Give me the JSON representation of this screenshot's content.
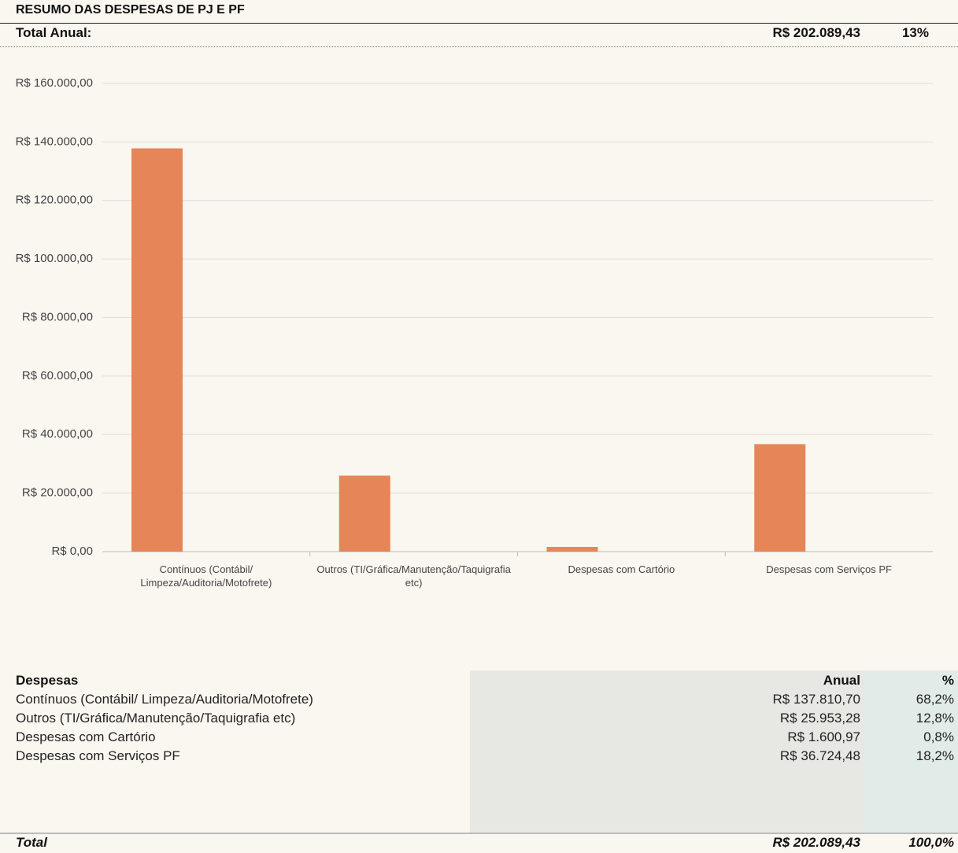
{
  "header": {
    "title": "RESUMO DAS DESPESAS DE PJ E PF",
    "total_label": "Total Anual:",
    "total_value": "R$ 202.089,43",
    "total_percent": "13%"
  },
  "chart_data": {
    "type": "bar",
    "color": "#e68557",
    "grid": true,
    "categories": [
      "Contínuos (Contábil/ Limpeza/Auditoria/Motofrete)",
      "Outros (TI/Gráfica/Manutenção/Taquigrafia etc)",
      "Despesas com Cartório",
      "Despesas com Serviços PF"
    ],
    "values": [
      137810.7,
      25953.28,
      1600.97,
      36724.48
    ],
    "ylim": [
      0,
      160000
    ],
    "yticks": [
      {
        "value": 0,
        "label": "R$ 0,00"
      },
      {
        "value": 20000,
        "label": "R$ 20.000,00"
      },
      {
        "value": 40000,
        "label": "R$ 40.000,00"
      },
      {
        "value": 60000,
        "label": "R$ 60.000,00"
      },
      {
        "value": 80000,
        "label": "R$ 80.000,00"
      },
      {
        "value": 100000,
        "label": "R$ 100.000,00"
      },
      {
        "value": 120000,
        "label": "R$ 120.000,00"
      },
      {
        "value": 140000,
        "label": "R$ 140.000,00"
      },
      {
        "value": 160000,
        "label": "R$ 160.000,00"
      }
    ]
  },
  "table": {
    "columns": [
      "Despesas",
      "Anual",
      "%"
    ],
    "rows": [
      [
        "Contínuos (Contábil/ Limpeza/Auditoria/Motofrete)",
        "R$ 137.810,70",
        "68,2%"
      ],
      [
        "Outros (TI/Gráfica/Manutenção/Taquigrafia etc)",
        "R$ 25.953,28",
        "12,8%"
      ],
      [
        "Despesas com Cartório",
        "R$ 1.600,97",
        "0,8%"
      ],
      [
        "Despesas com Serviços PF",
        "R$ 36.724,48",
        "18,2%"
      ]
    ],
    "total": [
      "Total",
      "R$ 202.089,43",
      "100,0%"
    ]
  }
}
